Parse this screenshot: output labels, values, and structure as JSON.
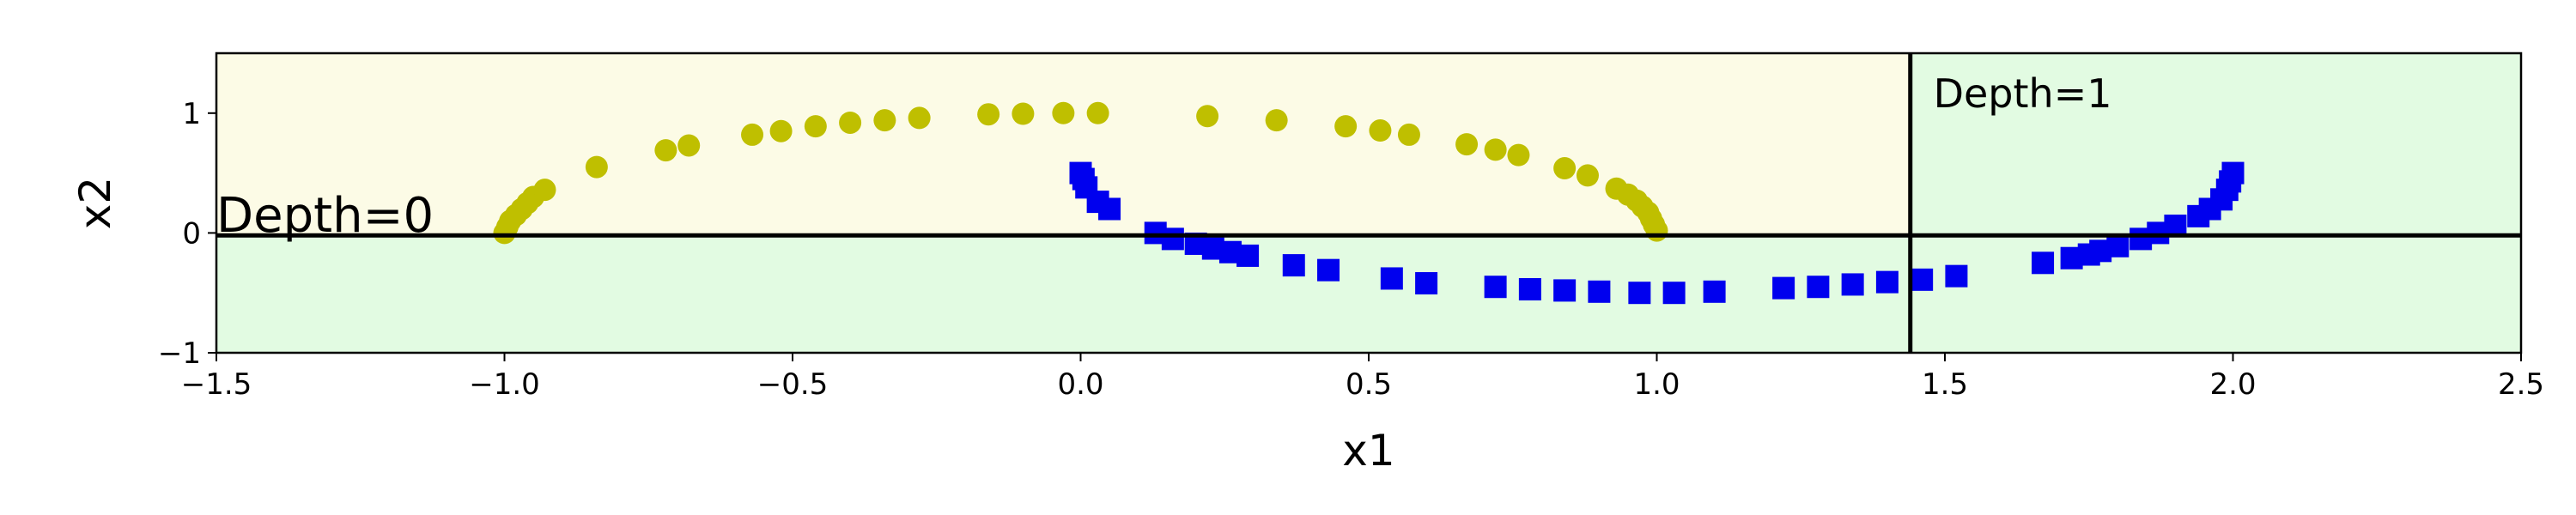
{
  "chart_data": {
    "type": "scatter",
    "title": "",
    "xlabel": "x1",
    "ylabel": "x2",
    "xlim": [
      -1.5,
      2.5
    ],
    "ylim": [
      -1,
      1.5
    ],
    "xticks": [
      -1.5,
      -1.0,
      -0.5,
      0.0,
      0.5,
      1.0,
      1.5,
      2.0,
      2.5
    ],
    "xtick_labels": [
      "−1.5",
      "−1.0",
      "−0.5",
      "0.0",
      "0.5",
      "1.0",
      "1.5",
      "2.0",
      "2.5"
    ],
    "yticks": [
      -1,
      0,
      1
    ],
    "ytick_labels": [
      "−1",
      "0",
      "1"
    ],
    "grid": false,
    "regions": [
      {
        "x0": -1.5,
        "x1": 1.44,
        "y0": -0.02,
        "y1": 1.5,
        "color": "#fcfbe6"
      },
      {
        "x0": -1.5,
        "x1": 1.44,
        "y0": -1,
        "y1": -0.02,
        "color": "#e2fbe2"
      },
      {
        "x0": 1.44,
        "x1": 2.5,
        "y0": -1,
        "y1": 1.5,
        "color": "#e2fbe2"
      }
    ],
    "boundaries": [
      {
        "orientation": "horizontal",
        "value": -0.02,
        "from": -1.5,
        "to": 2.5,
        "label": "Depth=0",
        "label_x": -1.5,
        "label_y": 0.01
      },
      {
        "orientation": "vertical",
        "value": 1.44,
        "from": -1,
        "to": 1.5,
        "label": "Depth=1",
        "label_x": 1.48,
        "label_y": 1.05
      }
    ],
    "series": [
      {
        "marker": "circle",
        "color": "#bfbf00",
        "points": [
          [
            -1.0,
            0.0
          ],
          [
            -0.995,
            0.05
          ],
          [
            -0.99,
            0.1
          ],
          [
            -0.98,
            0.15
          ],
          [
            -0.97,
            0.2
          ],
          [
            -0.96,
            0.25
          ],
          [
            -0.95,
            0.3
          ],
          [
            -0.93,
            0.36
          ],
          [
            -0.84,
            0.55
          ],
          [
            -0.72,
            0.69
          ],
          [
            -0.68,
            0.73
          ],
          [
            -0.57,
            0.82
          ],
          [
            -0.52,
            0.85
          ],
          [
            -0.46,
            0.89
          ],
          [
            -0.4,
            0.92
          ],
          [
            -0.34,
            0.94
          ],
          [
            -0.28,
            0.96
          ],
          [
            -0.16,
            0.99
          ],
          [
            -0.1,
            0.995
          ],
          [
            -0.03,
            1.0
          ],
          [
            0.03,
            1.0
          ],
          [
            0.22,
            0.975
          ],
          [
            0.34,
            0.94
          ],
          [
            0.46,
            0.89
          ],
          [
            0.52,
            0.855
          ],
          [
            0.57,
            0.82
          ],
          [
            0.67,
            0.74
          ],
          [
            0.72,
            0.695
          ],
          [
            0.76,
            0.65
          ],
          [
            0.84,
            0.54
          ],
          [
            0.88,
            0.48
          ],
          [
            0.93,
            0.37
          ],
          [
            0.95,
            0.32
          ],
          [
            0.965,
            0.27
          ],
          [
            0.975,
            0.22
          ],
          [
            0.985,
            0.17
          ],
          [
            0.99,
            0.12
          ],
          [
            0.995,
            0.07
          ],
          [
            1.0,
            0.02
          ]
        ]
      },
      {
        "marker": "square",
        "color": "#0000ee",
        "points": [
          [
            0.0,
            0.5
          ],
          [
            0.005,
            0.45
          ],
          [
            0.01,
            0.38
          ],
          [
            0.03,
            0.26
          ],
          [
            0.05,
            0.2
          ],
          [
            0.13,
            0.0
          ],
          [
            0.16,
            -0.05
          ],
          [
            0.2,
            -0.09
          ],
          [
            0.23,
            -0.13
          ],
          [
            0.26,
            -0.16
          ],
          [
            0.29,
            -0.19
          ],
          [
            0.37,
            -0.27
          ],
          [
            0.43,
            -0.31
          ],
          [
            0.54,
            -0.38
          ],
          [
            0.6,
            -0.42
          ],
          [
            0.72,
            -0.45
          ],
          [
            0.78,
            -0.47
          ],
          [
            0.84,
            -0.48
          ],
          [
            0.9,
            -0.49
          ],
          [
            0.97,
            -0.5
          ],
          [
            1.03,
            -0.5
          ],
          [
            1.1,
            -0.49
          ],
          [
            1.22,
            -0.46
          ],
          [
            1.28,
            -0.45
          ],
          [
            1.34,
            -0.43
          ],
          [
            1.4,
            -0.41
          ],
          [
            1.46,
            -0.39
          ],
          [
            1.52,
            -0.36
          ],
          [
            1.67,
            -0.25
          ],
          [
            1.72,
            -0.21
          ],
          [
            1.75,
            -0.18
          ],
          [
            1.77,
            -0.15
          ],
          [
            1.8,
            -0.11
          ],
          [
            1.84,
            -0.05
          ],
          [
            1.87,
            0.0
          ],
          [
            1.9,
            0.06
          ],
          [
            1.94,
            0.14
          ],
          [
            1.96,
            0.2
          ],
          [
            1.98,
            0.28
          ],
          [
            1.99,
            0.36
          ],
          [
            1.995,
            0.43
          ],
          [
            2.0,
            0.5
          ]
        ]
      }
    ]
  }
}
